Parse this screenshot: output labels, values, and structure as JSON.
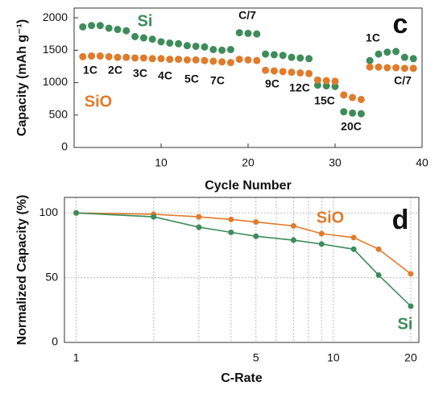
{
  "chart_data": [
    {
      "type": "scatter",
      "panel_label": "c",
      "xlabel": "Cycle Number",
      "ylabel": "Capacity (mAh g⁻¹)",
      "x": [
        1,
        2,
        3,
        4,
        5,
        6,
        7,
        8,
        9,
        10,
        11,
        12,
        13,
        14,
        15,
        16,
        17,
        18,
        19,
        20,
        21,
        22,
        23,
        24,
        25,
        26,
        27,
        28,
        29,
        30,
        31,
        32,
        33,
        34,
        35,
        36,
        37,
        38,
        39
      ],
      "series": [
        {
          "name": "Si",
          "color": "#3d8c5a",
          "values": [
            1860,
            1880,
            1880,
            1840,
            1820,
            1800,
            1710,
            1690,
            1670,
            1630,
            1610,
            1600,
            1570,
            1560,
            1550,
            1510,
            1500,
            1510,
            1770,
            1760,
            1750,
            1440,
            1430,
            1420,
            1390,
            1380,
            1370,
            960,
            950,
            940,
            550,
            530,
            520,
            1340,
            1440,
            1470,
            1480,
            1390,
            1370
          ]
        },
        {
          "name": "SiO",
          "color": "#e07b2c",
          "values": [
            1400,
            1410,
            1410,
            1400,
            1390,
            1390,
            1380,
            1380,
            1370,
            1370,
            1360,
            1360,
            1350,
            1350,
            1340,
            1330,
            1320,
            1310,
            1360,
            1350,
            1340,
            1190,
            1180,
            1170,
            1160,
            1150,
            1140,
            1040,
            1030,
            1020,
            810,
            770,
            740,
            1240,
            1240,
            1230,
            1230,
            1220,
            1220
          ]
        }
      ],
      "annotations": [
        "1C",
        "2C",
        "3C",
        "4C",
        "5C",
        "7C",
        "C/7",
        "9C",
        "12C",
        "15C",
        "20C",
        "1C",
        "C/7"
      ],
      "xlim": [
        0,
        40
      ],
      "xticks": [
        10,
        20,
        30,
        40
      ],
      "ylim": [
        0,
        2150
      ],
      "yticks": [
        0,
        500,
        1000,
        1500,
        2000
      ],
      "grid": false
    },
    {
      "type": "line",
      "panel_label": "d",
      "xlabel": "C-Rate",
      "ylabel": "Normalized Capacity (%)",
      "x": [
        1,
        2,
        3,
        4,
        5,
        7,
        9,
        12,
        15,
        20
      ],
      "series": [
        {
          "name": "SiO",
          "color": "#e07b2c",
          "values": [
            100,
            99,
            97,
            95,
            93,
            90,
            84,
            81,
            72,
            53
          ]
        },
        {
          "name": "Si",
          "color": "#3d8c5a",
          "values": [
            100,
            97,
            89,
            85,
            82,
            79,
            76,
            72,
            52,
            28
          ]
        }
      ],
      "xscale": "log",
      "xlim": [
        0.9,
        21.5
      ],
      "xticks": [
        1,
        5,
        10,
        20
      ],
      "minor_xticks": [
        2,
        3,
        4,
        6,
        7,
        8,
        9
      ],
      "ylim": [
        0,
        112
      ],
      "yticks": [
        0,
        50,
        100
      ],
      "grid": true
    }
  ]
}
